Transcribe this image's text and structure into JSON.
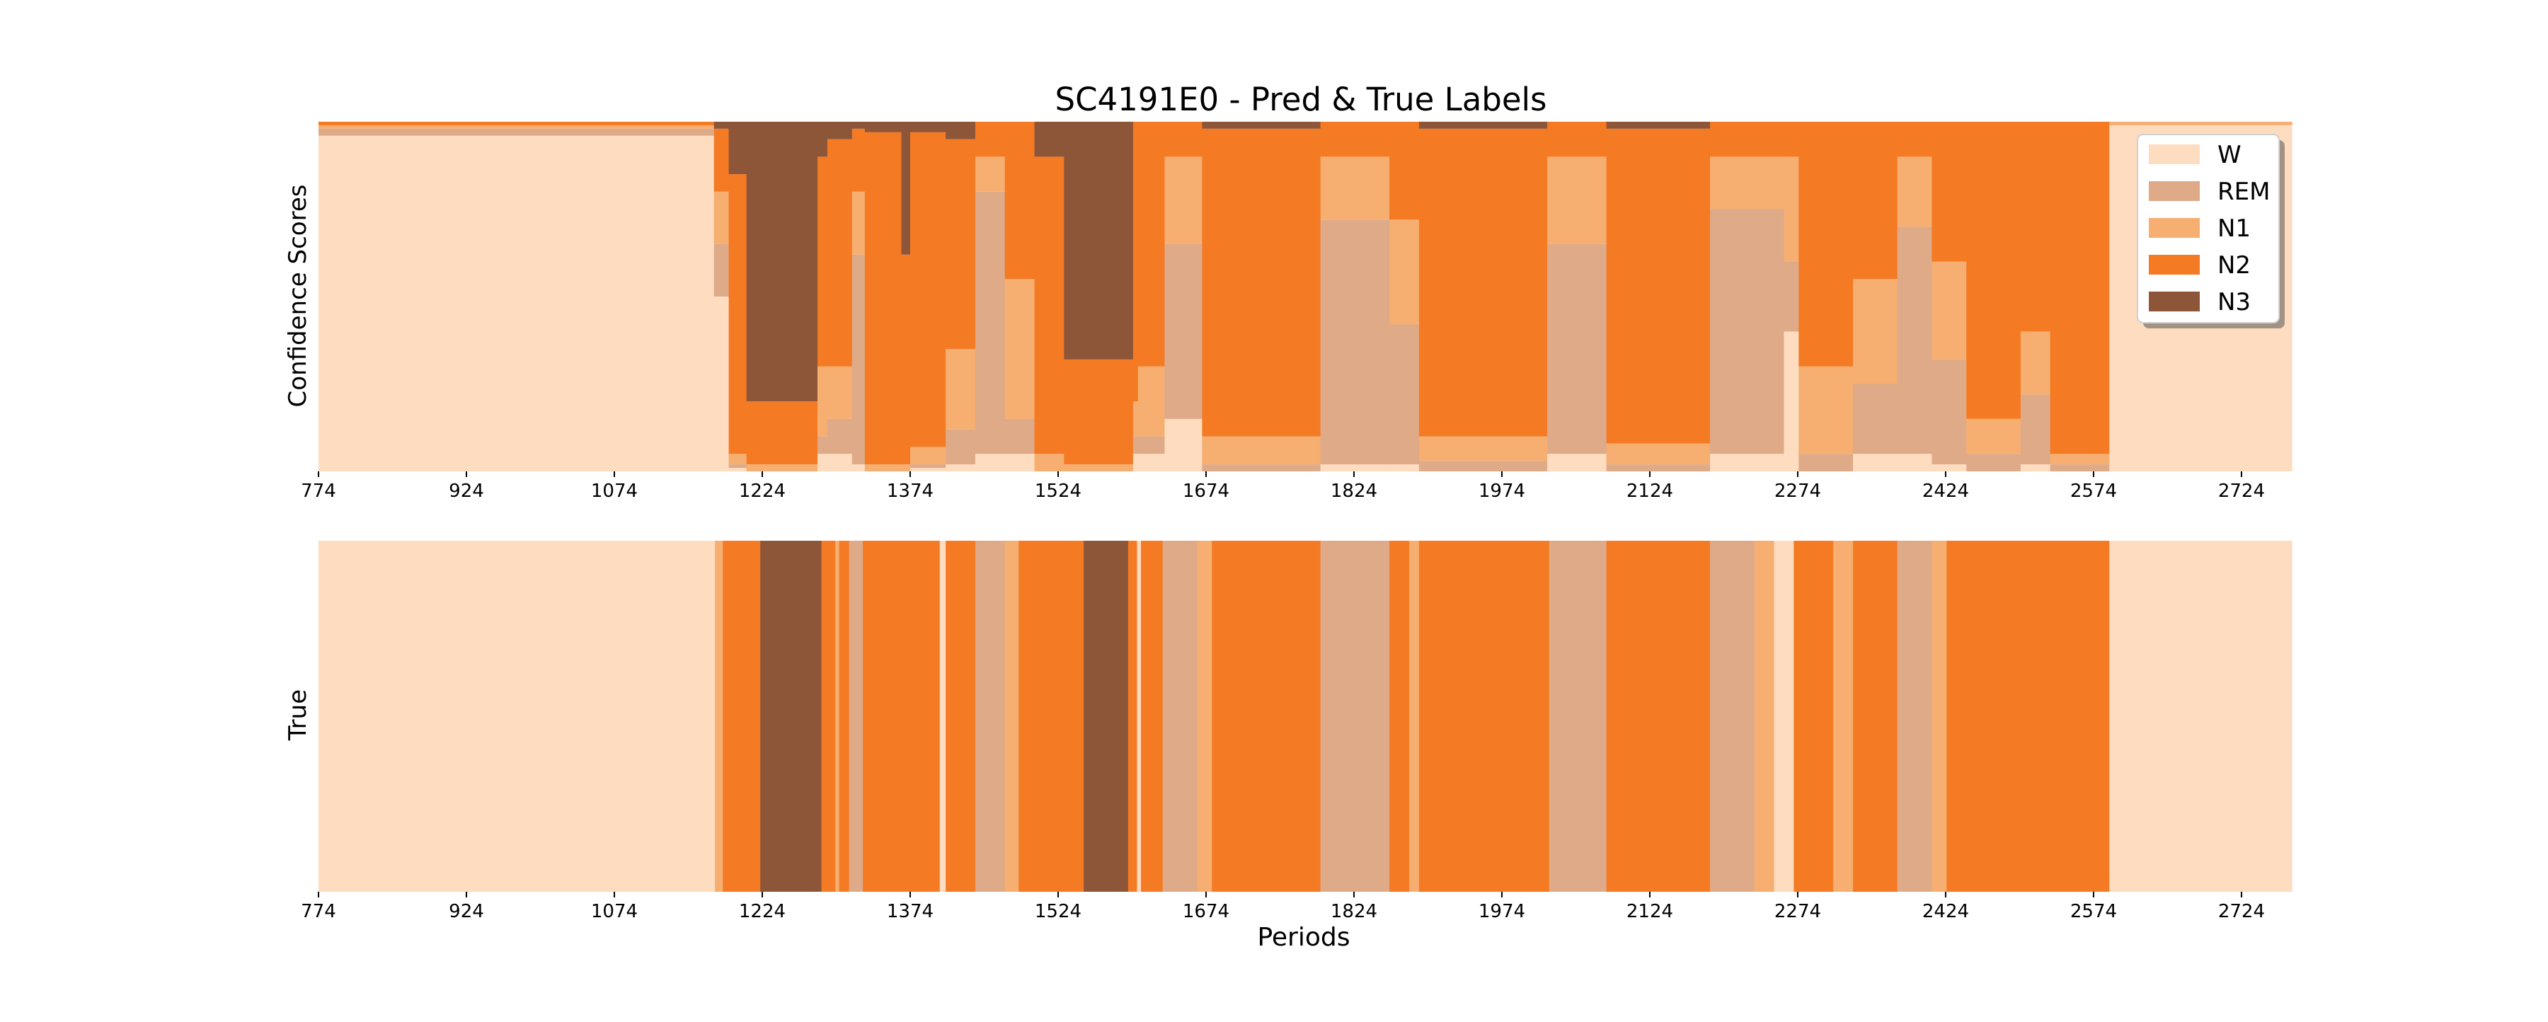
{
  "chart_data": {
    "type": "area",
    "title": "SC4191E0 - Pred & True Labels",
    "legend": {
      "placement": "top-right",
      "entries": [
        {
          "name": "W",
          "color": "#FDDCBF"
        },
        {
          "name": "REM",
          "color": "#DFAA88"
        },
        {
          "name": "N1",
          "color": "#F6AE71"
        },
        {
          "name": "N2",
          "color": "#F47A24"
        },
        {
          "name": "N3",
          "color": "#8E5638"
        }
      ]
    },
    "xlabel": "Periods",
    "xlim": [
      774,
      2775
    ],
    "xticks": [
      774,
      924,
      1074,
      1224,
      1374,
      1524,
      1674,
      1824,
      1974,
      2124,
      2274,
      2424,
      2574,
      2724
    ],
    "grid": false,
    "panels": [
      {
        "ylabel": "Confidence Scores",
        "kind": "stacked-confidence",
        "ylim": [
          0,
          1
        ],
        "segments": [
          {
            "start": 774,
            "end": 1175,
            "W": 0.96,
            "REM": 0.02,
            "N1": 0.01,
            "N2": 0.01,
            "N3": 0.0
          },
          {
            "start": 1175,
            "end": 1190,
            "W": 0.5,
            "REM": 0.15,
            "N1": 0.15,
            "N2": 0.18,
            "N3": 0.02
          },
          {
            "start": 1190,
            "end": 1208,
            "W": 0.01,
            "REM": 0.01,
            "N1": 0.03,
            "N2": 0.8,
            "N3": 0.15
          },
          {
            "start": 1208,
            "end": 1280,
            "W": 0.0,
            "REM": 0.0,
            "N1": 0.02,
            "N2": 0.18,
            "N3": 0.8
          },
          {
            "start": 1280,
            "end": 1290,
            "W": 0.05,
            "REM": 0.05,
            "N1": 0.2,
            "N2": 0.6,
            "N3": 0.1
          },
          {
            "start": 1290,
            "end": 1315,
            "W": 0.05,
            "REM": 0.1,
            "N1": 0.15,
            "N2": 0.65,
            "N3": 0.05
          },
          {
            "start": 1315,
            "end": 1328,
            "W": 0.02,
            "REM": 0.6,
            "N1": 0.18,
            "N2": 0.18,
            "N3": 0.02
          },
          {
            "start": 1328,
            "end": 1365,
            "W": 0.0,
            "REM": 0.0,
            "N1": 0.02,
            "N2": 0.95,
            "N3": 0.03
          },
          {
            "start": 1365,
            "end": 1374,
            "W": 0.0,
            "REM": 0.0,
            "N1": 0.02,
            "N2": 0.6,
            "N3": 0.38
          },
          {
            "start": 1374,
            "end": 1410,
            "W": 0.01,
            "REM": 0.01,
            "N1": 0.05,
            "N2": 0.9,
            "N3": 0.03
          },
          {
            "start": 1410,
            "end": 1440,
            "W": 0.02,
            "REM": 0.1,
            "N1": 0.23,
            "N2": 0.6,
            "N3": 0.05
          },
          {
            "start": 1440,
            "end": 1470,
            "W": 0.05,
            "REM": 0.75,
            "N1": 0.1,
            "N2": 0.1,
            "N3": 0.0
          },
          {
            "start": 1470,
            "end": 1500,
            "W": 0.05,
            "REM": 0.1,
            "N1": 0.4,
            "N2": 0.45,
            "N3": 0.0
          },
          {
            "start": 1500,
            "end": 1530,
            "W": 0.0,
            "REM": 0.0,
            "N1": 0.05,
            "N2": 0.85,
            "N3": 0.1
          },
          {
            "start": 1530,
            "end": 1600,
            "W": 0.0,
            "REM": 0.0,
            "N1": 0.02,
            "N2": 0.3,
            "N3": 0.68
          },
          {
            "start": 1600,
            "end": 1605,
            "W": 0.05,
            "REM": 0.05,
            "N1": 0.1,
            "N2": 0.8,
            "N3": 0.0
          },
          {
            "start": 1605,
            "end": 1632,
            "W": 0.05,
            "REM": 0.05,
            "N1": 0.2,
            "N2": 0.7,
            "N3": 0.0
          },
          {
            "start": 1632,
            "end": 1670,
            "W": 0.15,
            "REM": 0.5,
            "N1": 0.25,
            "N2": 0.1,
            "N3": 0.0
          },
          {
            "start": 1670,
            "end": 1790,
            "W": 0.0,
            "REM": 0.02,
            "N1": 0.08,
            "N2": 0.88,
            "N3": 0.02
          },
          {
            "start": 1790,
            "end": 1860,
            "W": 0.02,
            "REM": 0.7,
            "N1": 0.18,
            "N2": 0.1,
            "N3": 0.0
          },
          {
            "start": 1860,
            "end": 1890,
            "W": 0.02,
            "REM": 0.4,
            "N1": 0.3,
            "N2": 0.28,
            "N3": 0.0
          },
          {
            "start": 1890,
            "end": 2020,
            "W": 0.0,
            "REM": 0.03,
            "N1": 0.07,
            "N2": 0.88,
            "N3": 0.02
          },
          {
            "start": 2020,
            "end": 2080,
            "W": 0.05,
            "REM": 0.6,
            "N1": 0.25,
            "N2": 0.1,
            "N3": 0.0
          },
          {
            "start": 2080,
            "end": 2185,
            "W": 0.0,
            "REM": 0.02,
            "N1": 0.06,
            "N2": 0.9,
            "N3": 0.02
          },
          {
            "start": 2185,
            "end": 2260,
            "W": 0.05,
            "REM": 0.7,
            "N1": 0.15,
            "N2": 0.1,
            "N3": 0.0
          },
          {
            "start": 2260,
            "end": 2275,
            "W": 0.4,
            "REM": 0.2,
            "N1": 0.3,
            "N2": 0.1,
            "N3": 0.0
          },
          {
            "start": 2275,
            "end": 2330,
            "W": 0.0,
            "REM": 0.05,
            "N1": 0.25,
            "N2": 0.7,
            "N3": 0.0
          },
          {
            "start": 2330,
            "end": 2375,
            "W": 0.05,
            "REM": 0.2,
            "N1": 0.3,
            "N2": 0.45,
            "N3": 0.0
          },
          {
            "start": 2375,
            "end": 2410,
            "W": 0.05,
            "REM": 0.65,
            "N1": 0.2,
            "N2": 0.1,
            "N3": 0.0
          },
          {
            "start": 2410,
            "end": 2445,
            "W": 0.02,
            "REM": 0.3,
            "N1": 0.28,
            "N2": 0.4,
            "N3": 0.0
          },
          {
            "start": 2445,
            "end": 2500,
            "W": 0.0,
            "REM": 0.05,
            "N1": 0.1,
            "N2": 0.85,
            "N3": 0.0
          },
          {
            "start": 2500,
            "end": 2530,
            "W": 0.02,
            "REM": 0.2,
            "N1": 0.18,
            "N2": 0.6,
            "N3": 0.0
          },
          {
            "start": 2530,
            "end": 2590,
            "W": 0.0,
            "REM": 0.02,
            "N1": 0.03,
            "N2": 0.95,
            "N3": 0.0
          },
          {
            "start": 2590,
            "end": 2775,
            "W": 0.99,
            "REM": 0.0,
            "N1": 0.01,
            "N2": 0.0,
            "N3": 0.0
          }
        ]
      },
      {
        "ylabel": "True",
        "kind": "labels",
        "segments": [
          {
            "start": 774,
            "end": 1176,
            "label": "W"
          },
          {
            "start": 1176,
            "end": 1184,
            "label": "N1"
          },
          {
            "start": 1184,
            "end": 1222,
            "label": "N2"
          },
          {
            "start": 1222,
            "end": 1284,
            "label": "N3"
          },
          {
            "start": 1284,
            "end": 1298,
            "label": "N2"
          },
          {
            "start": 1298,
            "end": 1302,
            "label": "N1"
          },
          {
            "start": 1302,
            "end": 1312,
            "label": "N2"
          },
          {
            "start": 1312,
            "end": 1326,
            "label": "REM"
          },
          {
            "start": 1326,
            "end": 1404,
            "label": "N2"
          },
          {
            "start": 1404,
            "end": 1410,
            "label": "W"
          },
          {
            "start": 1410,
            "end": 1440,
            "label": "N2"
          },
          {
            "start": 1440,
            "end": 1470,
            "label": "REM"
          },
          {
            "start": 1470,
            "end": 1484,
            "label": "N1"
          },
          {
            "start": 1484,
            "end": 1550,
            "label": "N2"
          },
          {
            "start": 1550,
            "end": 1595,
            "label": "N3"
          },
          {
            "start": 1595,
            "end": 1604,
            "label": "N2"
          },
          {
            "start": 1604,
            "end": 1608,
            "label": "W"
          },
          {
            "start": 1608,
            "end": 1630,
            "label": "N2"
          },
          {
            "start": 1630,
            "end": 1665,
            "label": "REM"
          },
          {
            "start": 1665,
            "end": 1680,
            "label": "N1"
          },
          {
            "start": 1680,
            "end": 1790,
            "label": "N2"
          },
          {
            "start": 1790,
            "end": 1860,
            "label": "REM"
          },
          {
            "start": 1860,
            "end": 1880,
            "label": "N2"
          },
          {
            "start": 1880,
            "end": 1890,
            "label": "N1"
          },
          {
            "start": 1890,
            "end": 2022,
            "label": "N2"
          },
          {
            "start": 2022,
            "end": 2080,
            "label": "REM"
          },
          {
            "start": 2080,
            "end": 2185,
            "label": "N2"
          },
          {
            "start": 2185,
            "end": 2230,
            "label": "REM"
          },
          {
            "start": 2230,
            "end": 2250,
            "label": "N1"
          },
          {
            "start": 2250,
            "end": 2270,
            "label": "W"
          },
          {
            "start": 2270,
            "end": 2310,
            "label": "N2"
          },
          {
            "start": 2310,
            "end": 2330,
            "label": "N1"
          },
          {
            "start": 2330,
            "end": 2375,
            "label": "N2"
          },
          {
            "start": 2375,
            "end": 2410,
            "label": "REM"
          },
          {
            "start": 2410,
            "end": 2425,
            "label": "N1"
          },
          {
            "start": 2425,
            "end": 2590,
            "label": "N2"
          },
          {
            "start": 2590,
            "end": 2775,
            "label": "W"
          }
        ]
      }
    ]
  }
}
